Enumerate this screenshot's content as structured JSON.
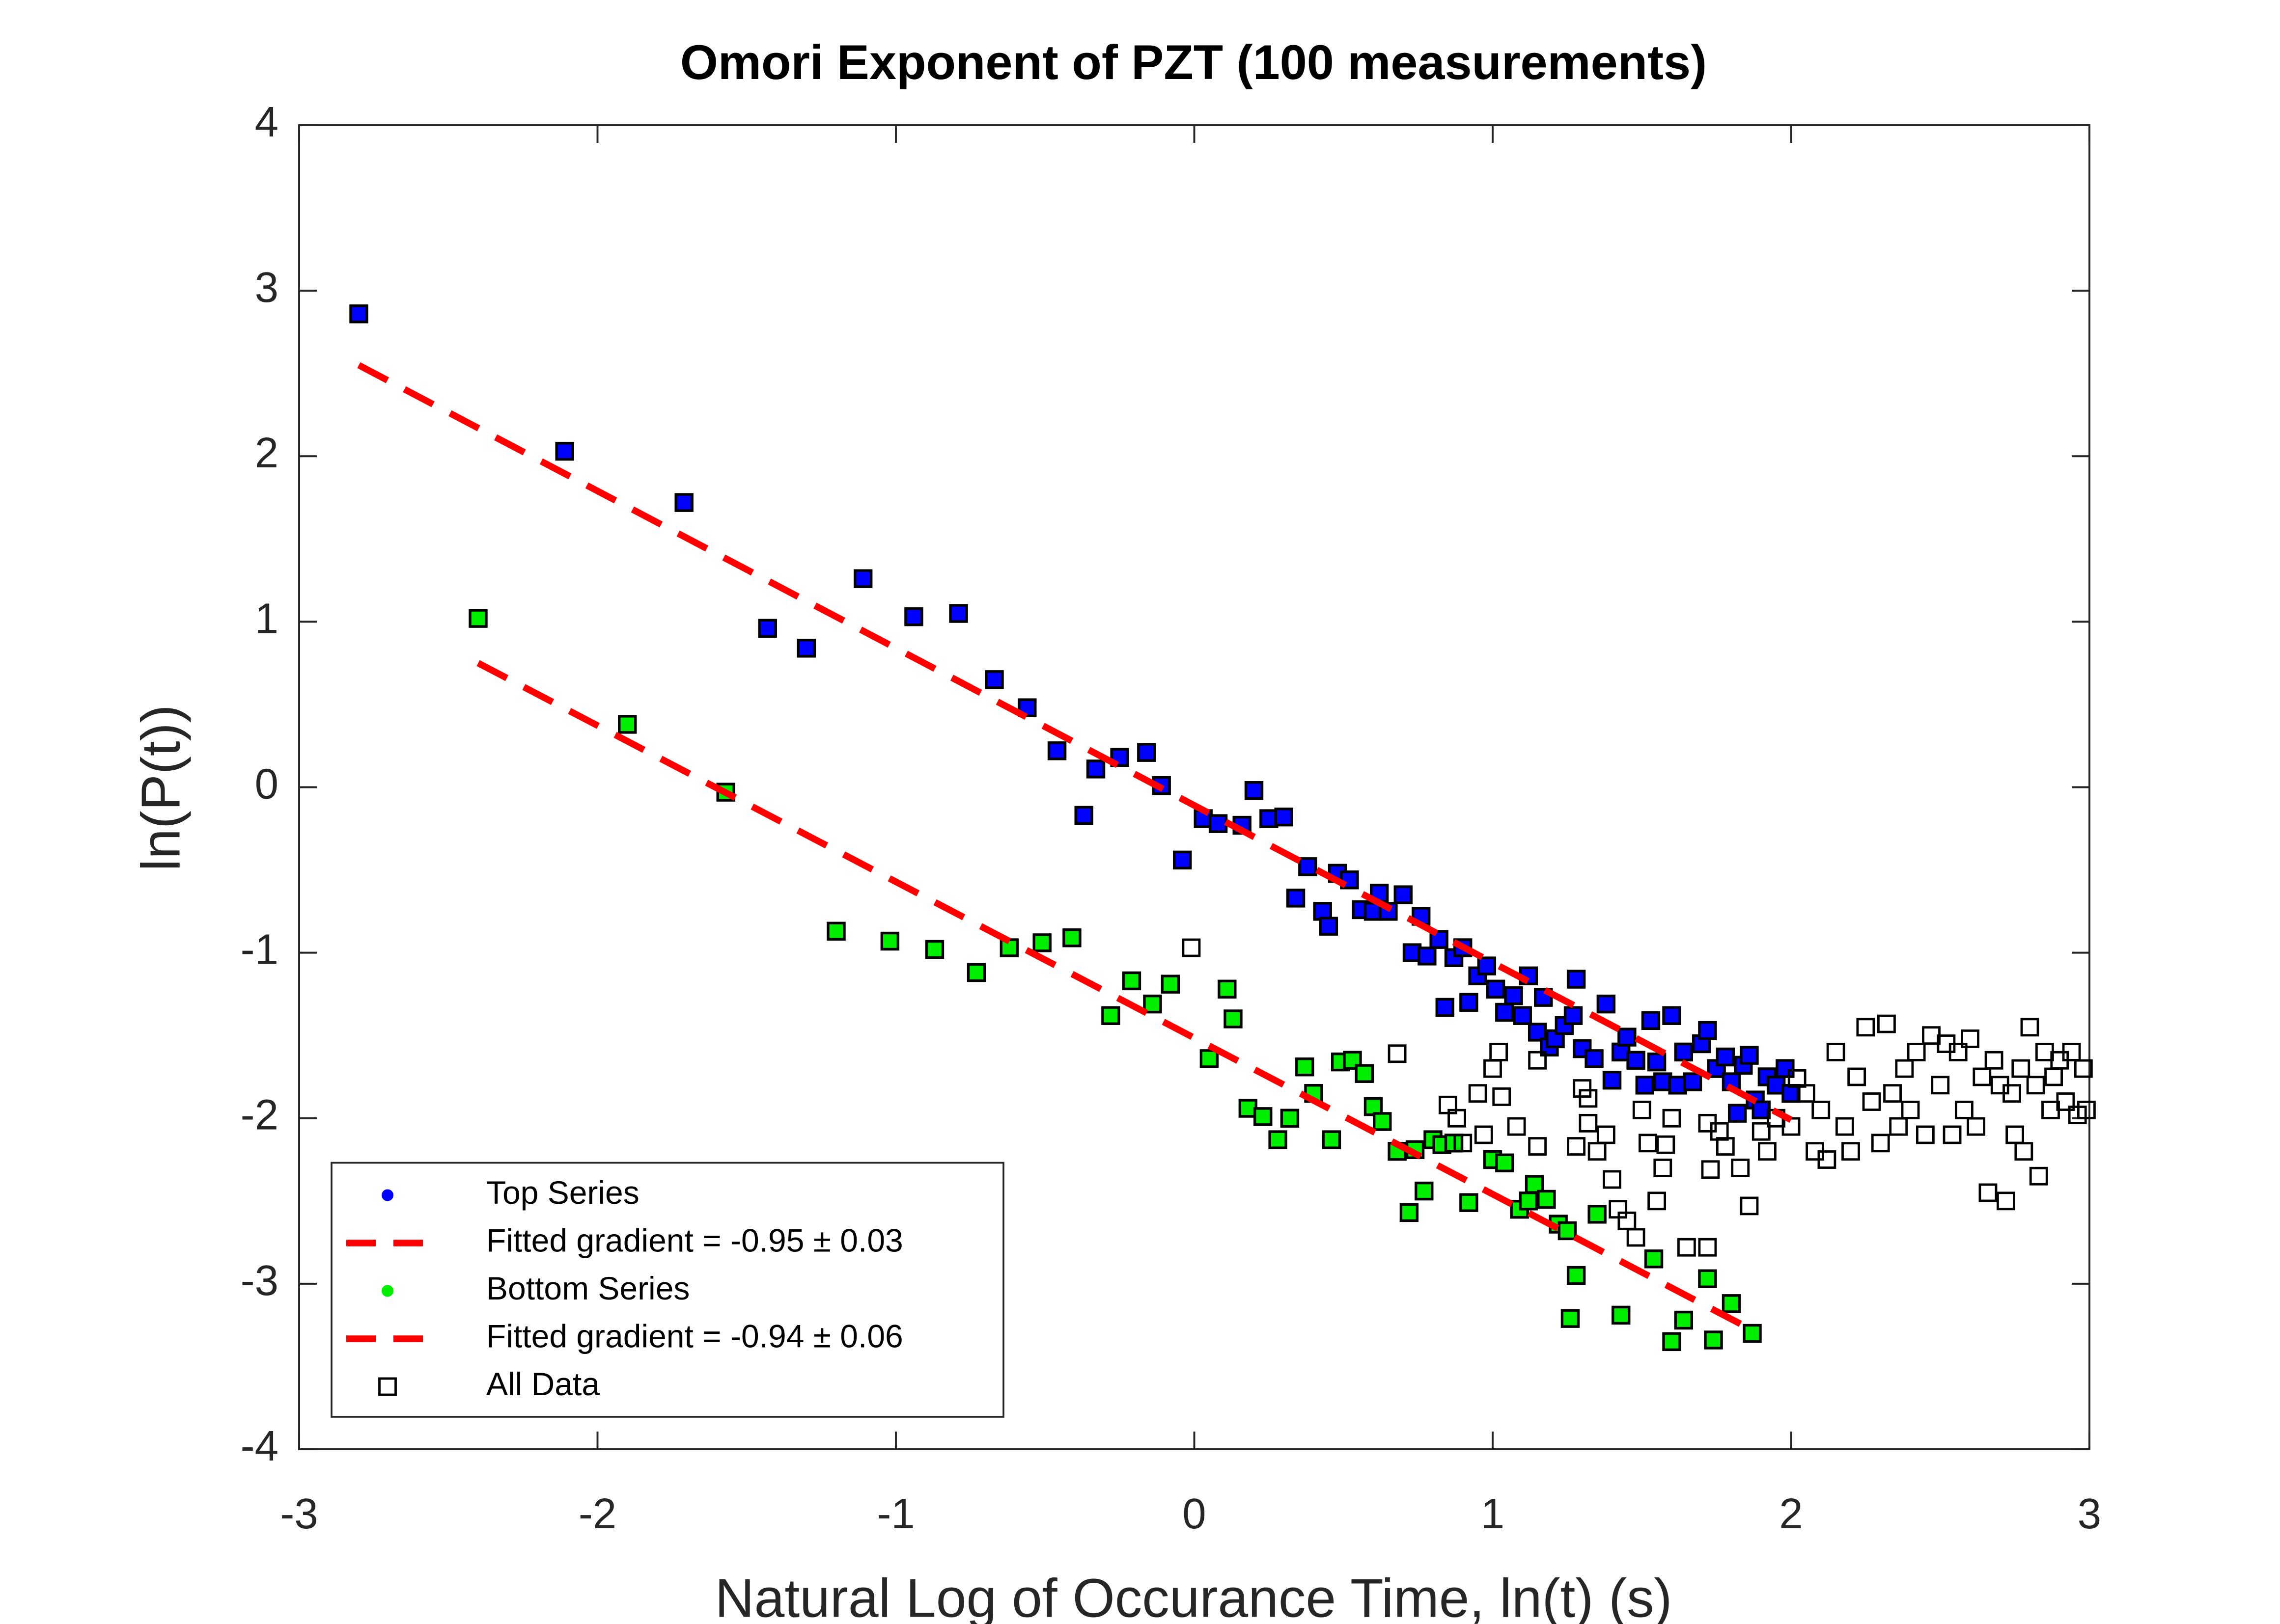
{
  "chart_data": {
    "type": "scatter",
    "title": "Omori Exponent of PZT (100 measurements)",
    "x_label": "Natural Log of Occurance Time, ln(t) (s)",
    "y_label": "ln(P(t))",
    "xlim": [
      -3,
      3
    ],
    "ylim": [
      -4,
      4
    ],
    "xticks": [
      -3,
      -2,
      -1,
      0,
      1,
      2,
      3
    ],
    "yticks": [
      -4,
      -3,
      -2,
      -1,
      0,
      1,
      2,
      3,
      4
    ],
    "grid": false,
    "box": true,
    "legend_position": "lower-left",
    "series": [
      {
        "name": "Top Series",
        "color": "#0000ff",
        "style": "marker",
        "marker": "dot",
        "marker_edge": "#000000",
        "x": [
          -2.8,
          -2.11,
          -1.71,
          -1.11,
          -0.94,
          -0.79,
          -1.43,
          -1.3,
          -0.67,
          -0.56,
          -0.46,
          -0.37,
          -0.33,
          -0.25,
          -0.16,
          -0.11,
          -0.04,
          0.03,
          0.08,
          0.16,
          0.2,
          0.25,
          0.3,
          0.34,
          0.38,
          0.43,
          0.45,
          0.48,
          0.52,
          0.56,
          0.6,
          0.62,
          0.65,
          0.7,
          0.73,
          0.76,
          0.78,
          0.82,
          0.84,
          0.87,
          0.9,
          0.92,
          0.95,
          0.98,
          1.01,
          1.04,
          1.07,
          1.1,
          1.12,
          1.15,
          1.17,
          1.19,
          1.21,
          1.24,
          1.27,
          1.28,
          1.3,
          1.34,
          1.38,
          1.4,
          1.43,
          1.45,
          1.48,
          1.51,
          1.53,
          1.55,
          1.57,
          1.6,
          1.62,
          1.64,
          1.67,
          1.7,
          1.72,
          1.75,
          1.78,
          1.8,
          1.82,
          1.84,
          1.86,
          1.88,
          1.9,
          1.92,
          1.95,
          1.98,
          2.0
        ],
        "values": [
          2.86,
          2.03,
          1.72,
          1.26,
          1.03,
          1.05,
          0.96,
          0.84,
          0.65,
          0.48,
          0.22,
          -0.17,
          0.11,
          0.18,
          0.21,
          0.01,
          -0.44,
          -0.19,
          -0.22,
          -0.23,
          -0.02,
          -0.19,
          -0.18,
          -0.67,
          -0.48,
          -0.75,
          -0.84,
          -0.52,
          -0.56,
          -0.74,
          -0.75,
          -0.64,
          -0.75,
          -0.65,
          -1.0,
          -0.78,
          -1.02,
          -0.92,
          -1.33,
          -1.03,
          -0.97,
          -1.3,
          -1.14,
          -1.08,
          -1.22,
          -1.36,
          -1.26,
          -1.38,
          -1.14,
          -1.48,
          -1.27,
          -1.57,
          -1.52,
          -1.44,
          -1.38,
          -1.16,
          -1.58,
          -1.64,
          -1.31,
          -1.77,
          -1.6,
          -1.51,
          -1.65,
          -1.8,
          -1.41,
          -1.66,
          -1.78,
          -1.38,
          -1.8,
          -1.6,
          -1.78,
          -1.55,
          -1.47,
          -1.7,
          -1.63,
          -1.78,
          -1.97,
          -1.68,
          -1.62,
          -1.89,
          -1.95,
          -1.75,
          -1.8,
          -1.7,
          -1.85
        ]
      },
      {
        "name": "Fitted gradient = -0.95 ± 0.03",
        "color": "#ff0000",
        "style": "dashed-line",
        "x": [
          -2.8,
          2.0
        ],
        "values": [
          2.55,
          -2.01
        ]
      },
      {
        "name": "Bottom Series",
        "color": "#00ee00",
        "style": "marker",
        "marker": "dot",
        "marker_edge": "#000000",
        "x": [
          -2.4,
          -1.9,
          -1.57,
          -1.2,
          -1.02,
          -0.87,
          -0.73,
          -0.62,
          -0.51,
          -0.41,
          -0.28,
          -0.21,
          -0.14,
          -0.08,
          0.05,
          0.11,
          0.13,
          0.18,
          0.23,
          0.28,
          0.32,
          0.37,
          0.4,
          0.46,
          0.49,
          0.53,
          0.57,
          0.6,
          0.63,
          0.68,
          0.72,
          0.74,
          0.77,
          0.8,
          0.83,
          0.87,
          0.92,
          1.0,
          1.04,
          1.09,
          1.12,
          1.14,
          1.18,
          1.22,
          1.25,
          1.26,
          1.28,
          1.35,
          1.43,
          1.54,
          1.6,
          1.64,
          1.72,
          1.74,
          1.8,
          1.87
        ],
        "values": [
          1.02,
          0.38,
          -0.03,
          -0.87,
          -0.93,
          -0.98,
          -1.12,
          -0.97,
          -0.94,
          -0.91,
          -1.38,
          -1.17,
          -1.31,
          -1.19,
          -1.64,
          -1.22,
          -1.4,
          -1.94,
          -1.99,
          -2.13,
          -2.0,
          -1.69,
          -1.85,
          -2.13,
          -1.66,
          -1.65,
          -1.73,
          -1.93,
          -2.02,
          -2.2,
          -2.57,
          -2.19,
          -2.44,
          -2.13,
          -2.16,
          -2.15,
          -2.51,
          -2.25,
          -2.27,
          -2.55,
          -2.5,
          -2.4,
          -2.49,
          -2.64,
          -2.68,
          -3.21,
          -2.95,
          -2.58,
          -3.19,
          -2.85,
          -3.35,
          -3.22,
          -2.97,
          -3.34,
          -3.12,
          -3.3
        ]
      },
      {
        "name": "Fitted gradient = -0.94 ± 0.06",
        "color": "#ff0000",
        "style": "dashed-line",
        "x": [
          -2.4,
          1.87
        ],
        "values": [
          0.75,
          -3.28
        ]
      },
      {
        "name": "All Data",
        "color": "#000000",
        "style": "marker",
        "marker": "square",
        "x": [
          -0.01,
          0.68,
          0.85,
          0.88,
          0.9,
          0.95,
          0.97,
          1.0,
          1.02,
          1.03,
          1.08,
          1.15,
          1.15,
          1.28,
          1.3,
          1.32,
          1.32,
          1.35,
          1.38,
          1.4,
          1.42,
          1.45,
          1.48,
          1.5,
          1.52,
          1.55,
          1.57,
          1.58,
          1.6,
          1.65,
          1.72,
          1.72,
          1.73,
          1.76,
          1.78,
          1.83,
          1.86,
          1.9,
          1.92,
          1.95,
          2.0,
          2.02,
          2.05,
          2.08,
          2.1,
          2.12,
          2.15,
          2.18,
          2.2,
          2.22,
          2.25,
          2.27,
          2.3,
          2.32,
          2.34,
          2.36,
          2.38,
          2.4,
          2.42,
          2.45,
          2.47,
          2.5,
          2.52,
          2.54,
          2.56,
          2.58,
          2.6,
          2.62,
          2.64,
          2.66,
          2.68,
          2.7,
          2.72,
          2.74,
          2.75,
          2.77,
          2.78,
          2.8,
          2.82,
          2.83,
          2.85,
          2.87,
          2.88,
          2.9,
          2.92,
          2.94,
          2.96,
          2.98,
          2.99
        ],
        "values": [
          -0.97,
          -1.61,
          -1.92,
          -2.0,
          -2.15,
          -1.85,
          -2.1,
          -1.7,
          -1.6,
          -1.87,
          -2.05,
          -1.65,
          -2.17,
          -2.17,
          -1.82,
          -1.88,
          -2.03,
          -2.2,
          -2.1,
          -2.37,
          -2.55,
          -2.62,
          -2.72,
          -1.95,
          -2.15,
          -2.5,
          -2.3,
          -2.16,
          -2.0,
          -2.78,
          -2.78,
          -2.03,
          -2.31,
          -2.08,
          -2.17,
          -2.3,
          -2.53,
          -2.08,
          -2.2,
          -2.0,
          -2.05,
          -1.76,
          -1.85,
          -2.2,
          -1.95,
          -2.25,
          -1.6,
          -2.05,
          -2.2,
          -1.75,
          -1.45,
          -1.9,
          -2.15,
          -1.43,
          -1.85,
          -2.05,
          -1.7,
          -1.95,
          -1.6,
          -2.1,
          -1.5,
          -1.8,
          -1.55,
          -2.1,
          -1.6,
          -1.95,
          -1.52,
          -2.05,
          -1.75,
          -2.45,
          -1.65,
          -1.8,
          -2.5,
          -1.85,
          -2.1,
          -1.7,
          -2.2,
          -1.45,
          -1.8,
          -2.35,
          -1.6,
          -1.95,
          -1.75,
          -1.65,
          -1.9,
          -1.6,
          -1.98,
          -1.7,
          -1.95
        ]
      }
    ]
  }
}
